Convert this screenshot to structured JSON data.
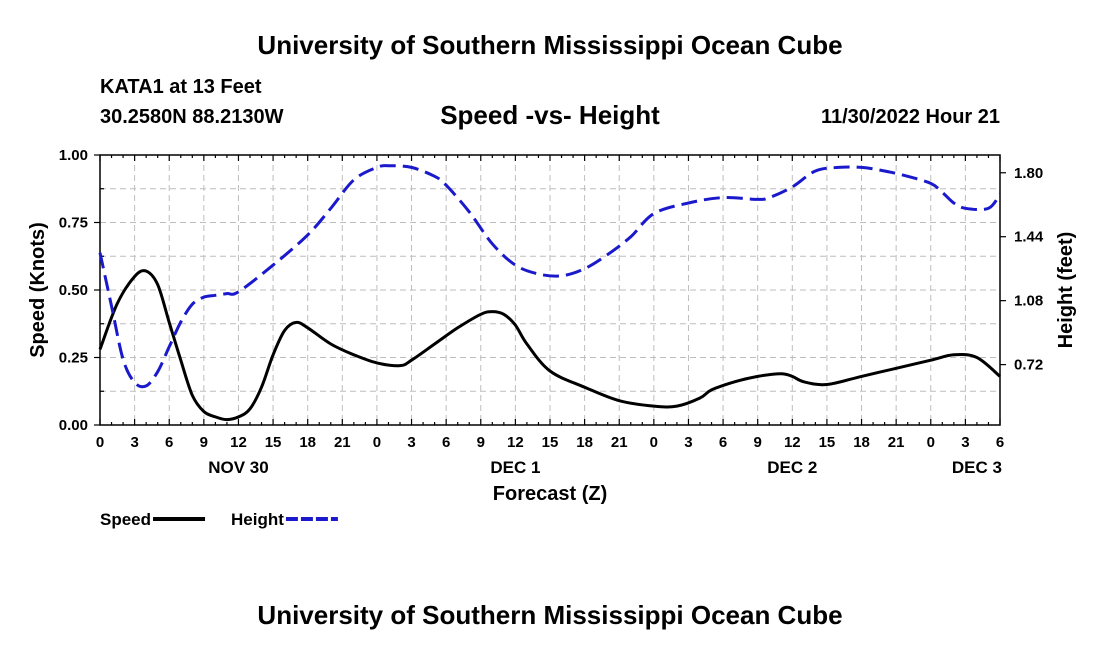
{
  "header": {
    "title": "University of Southern Mississippi Ocean Cube",
    "station": "KATA1 at 13 Feet",
    "coords": "30.2580N  88.2130W",
    "subtitle": "Speed -vs- Height",
    "datetime": "11/30/2022 Hour 21"
  },
  "footer": {
    "title": "University of Southern Mississippi Ocean Cube"
  },
  "chart_data": {
    "type": "line",
    "title": "Speed -vs- Height",
    "xlabel": "Forecast (Z)",
    "ylabel": "Speed (Knots)",
    "y2label": "Height (feet)",
    "x_hours_range": [
      0,
      78
    ],
    "x_tick_step_hours": 3,
    "x_tick_labels": [
      "0",
      "3",
      "6",
      "9",
      "12",
      "15",
      "18",
      "21",
      "0",
      "3",
      "6",
      "9",
      "12",
      "15",
      "18",
      "21",
      "0",
      "3",
      "6",
      "9",
      "12",
      "15",
      "18",
      "21",
      "0",
      "3",
      "6"
    ],
    "day_labels": [
      {
        "label": "NOV 30",
        "hour": 12
      },
      {
        "label": "DEC 1",
        "hour": 36
      },
      {
        "label": "DEC 2",
        "hour": 60
      },
      {
        "label": "DEC 3",
        "hour": 76
      }
    ],
    "ylim": [
      0,
      1
    ],
    "y_ticks": [
      0,
      0.25,
      0.5,
      0.75,
      1.0
    ],
    "y_tick_labels": [
      "0.00",
      "0.25",
      "0.50",
      "0.75",
      "1.00"
    ],
    "y2lim": [
      0.38,
      1.9
    ],
    "y2_ticks": [
      0.72,
      1.08,
      1.44,
      1.8
    ],
    "y2_tick_labels": [
      "0.72",
      "1.08",
      "1.44",
      "1.80"
    ],
    "grid": true,
    "series": [
      {
        "name": "Speed",
        "axis": "left",
        "color": "#000000",
        "dashed": false,
        "hours": [
          0,
          1.5,
          3,
          4,
          5,
          6,
          7,
          8,
          9,
          10,
          11,
          12,
          13,
          14,
          15,
          16,
          17,
          18,
          20,
          22,
          24,
          26,
          27,
          29,
          31,
          33,
          34,
          35,
          36,
          37,
          39,
          42,
          45,
          48,
          50,
          52,
          53,
          55,
          57,
          59,
          60,
          61,
          63,
          66,
          69,
          72,
          74,
          76,
          78
        ],
        "values": [
          0.28,
          0.45,
          0.55,
          0.57,
          0.52,
          0.38,
          0.24,
          0.11,
          0.05,
          0.03,
          0.02,
          0.03,
          0.06,
          0.14,
          0.26,
          0.35,
          0.38,
          0.36,
          0.3,
          0.26,
          0.23,
          0.22,
          0.24,
          0.3,
          0.36,
          0.41,
          0.42,
          0.41,
          0.37,
          0.3,
          0.2,
          0.14,
          0.09,
          0.07,
          0.07,
          0.1,
          0.13,
          0.16,
          0.18,
          0.19,
          0.18,
          0.16,
          0.15,
          0.18,
          0.21,
          0.24,
          0.26,
          0.25,
          0.18
        ]
      },
      {
        "name": "Height",
        "axis": "right",
        "color": "#1a1acc",
        "dashed": true,
        "hours": [
          0,
          1,
          2,
          3,
          4,
          5,
          6,
          7,
          8,
          9,
          10,
          11,
          12,
          15,
          18,
          20,
          22,
          24,
          25,
          27,
          29,
          30,
          32,
          34,
          36,
          38,
          40,
          42,
          44,
          46,
          48,
          51,
          54,
          57,
          58,
          60,
          62,
          64,
          66,
          68,
          70,
          72,
          73,
          74,
          75,
          77,
          78
        ],
        "values": [
          1.35,
          1.05,
          0.75,
          0.62,
          0.6,
          0.68,
          0.82,
          0.96,
          1.06,
          1.1,
          1.11,
          1.12,
          1.13,
          1.28,
          1.45,
          1.6,
          1.76,
          1.83,
          1.84,
          1.83,
          1.78,
          1.73,
          1.58,
          1.4,
          1.28,
          1.23,
          1.22,
          1.26,
          1.34,
          1.44,
          1.57,
          1.63,
          1.66,
          1.65,
          1.66,
          1.72,
          1.81,
          1.83,
          1.83,
          1.81,
          1.78,
          1.74,
          1.69,
          1.63,
          1.6,
          1.6,
          1.68
        ]
      }
    ],
    "legend": [
      {
        "label": "Speed",
        "color": "#000000",
        "dashed": false
      },
      {
        "label": "Height",
        "color": "#1a1acc",
        "dashed": true
      }
    ],
    "legend_position": "bottom-left"
  }
}
